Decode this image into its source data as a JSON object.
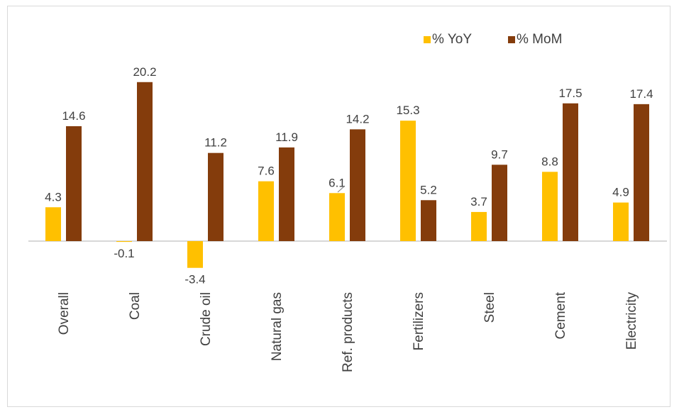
{
  "chart_data": {
    "type": "bar",
    "categories": [
      "Overall",
      "Coal",
      "Crude oil",
      "Natural gas",
      "Ref. products",
      "Fertilizers",
      "Steel",
      "Cement",
      "Electricity"
    ],
    "series": [
      {
        "name": "% YoY",
        "color": "#FFC000",
        "values": [
          4.3,
          -0.1,
          -3.4,
          7.6,
          6.1,
          15.3,
          3.7,
          8.8,
          4.9
        ]
      },
      {
        "name": "% MoM",
        "color": "#843C0C",
        "values": [
          14.6,
          20.2,
          11.2,
          11.9,
          14.2,
          5.2,
          9.7,
          17.5,
          17.4
        ]
      }
    ],
    "ylim": [
      -5,
      25
    ],
    "grid": false,
    "legend": "top-right",
    "title": "",
    "xlabel": "",
    "ylabel": ""
  }
}
